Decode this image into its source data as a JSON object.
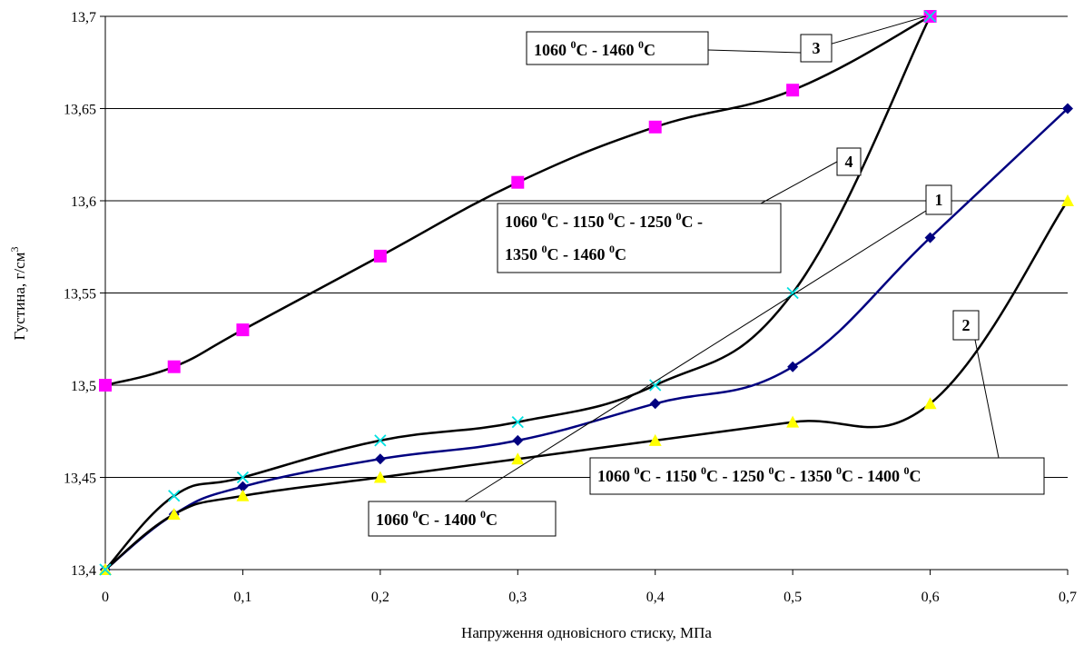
{
  "chart_data": {
    "type": "line",
    "xlabel": "Напруження одновісного стиску, МПа",
    "ylabel": "Густина, г/см",
    "ylabel_sup": "3",
    "xlim": [
      0,
      0.7
    ],
    "ylim": [
      13.4,
      13.7
    ],
    "x_ticks": [
      0,
      0.1,
      0.2,
      0.3,
      0.4,
      0.5,
      0.6,
      0.7
    ],
    "x_tick_labels": [
      "0",
      "0,1",
      "0,2",
      "0,3",
      "0,4",
      "0,5",
      "0,6",
      "0,7"
    ],
    "y_ticks": [
      13.4,
      13.45,
      13.5,
      13.55,
      13.6,
      13.65,
      13.7
    ],
    "y_tick_labels": [
      "13,4",
      "13,45",
      "13,5",
      "13,55",
      "13,6",
      "13,65",
      "13,7"
    ],
    "grid": "horizontal",
    "series": [
      {
        "id": "1",
        "marker": "diamond",
        "marker_color": "#000080",
        "line_color": "#000080",
        "x": [
          0,
          0.05,
          0.1,
          0.2,
          0.3,
          0.4,
          0.5,
          0.6,
          0.7
        ],
        "y": [
          13.4,
          13.43,
          13.445,
          13.46,
          13.47,
          13.49,
          13.51,
          13.58,
          13.65
        ]
      },
      {
        "id": "2",
        "marker": "triangle",
        "marker_color": "#ffff00",
        "line_color": "#000000",
        "x": [
          0,
          0.05,
          0.1,
          0.2,
          0.3,
          0.4,
          0.5,
          0.6,
          0.7
        ],
        "y": [
          13.4,
          13.43,
          13.44,
          13.45,
          13.46,
          13.47,
          13.48,
          13.49,
          13.6
        ]
      },
      {
        "id": "3",
        "marker": "square",
        "marker_color": "#ff00ff",
        "line_color": "#000000",
        "x": [
          0,
          0.05,
          0.1,
          0.2,
          0.3,
          0.4,
          0.5,
          0.6
        ],
        "y": [
          13.5,
          13.51,
          13.53,
          13.57,
          13.61,
          13.64,
          13.66,
          13.7
        ]
      },
      {
        "id": "4",
        "marker": "x",
        "marker_color": "#00e0e0",
        "line_color": "#000000",
        "x": [
          0,
          0.05,
          0.1,
          0.2,
          0.3,
          0.4,
          0.5,
          0.6
        ],
        "y": [
          13.4,
          13.44,
          13.45,
          13.47,
          13.48,
          13.5,
          13.55,
          13.7
        ]
      }
    ],
    "annotations": [
      {
        "series": "3",
        "number": "3",
        "lines": [
          [
            [
              "1060 ",
              ""
            ],
            [
              "0",
              "sup"
            ],
            [
              "C - 1460 ",
              ""
            ],
            [
              "0",
              "sup"
            ],
            [
              "C",
              ""
            ]
          ]
        ]
      },
      {
        "series": "4",
        "number": "4",
        "lines": [
          [
            [
              "1060 ",
              ""
            ],
            [
              "0",
              "sup"
            ],
            [
              "C - 1150 ",
              ""
            ],
            [
              "0",
              "sup"
            ],
            [
              "C - 1250 ",
              ""
            ],
            [
              "0",
              "sup"
            ],
            [
              "C -",
              ""
            ]
          ],
          [
            [
              "1350 ",
              ""
            ],
            [
              "0",
              "sup"
            ],
            [
              "C - 1460 ",
              ""
            ],
            [
              "0",
              "sup"
            ],
            [
              "C",
              ""
            ]
          ]
        ]
      },
      {
        "series": "1",
        "number": "1",
        "lines": [
          [
            [
              "1060 ",
              ""
            ],
            [
              "0",
              "sup"
            ],
            [
              "C - 1400 ",
              ""
            ],
            [
              "0",
              "sup"
            ],
            [
              "C",
              ""
            ]
          ]
        ]
      },
      {
        "series": "2",
        "number": "2",
        "lines": [
          [
            [
              "1060 ",
              ""
            ],
            [
              "0",
              "sup"
            ],
            [
              "C - 1150 ",
              ""
            ],
            [
              "0",
              "sup"
            ],
            [
              "C - 1250 ",
              ""
            ],
            [
              "0",
              "sup"
            ],
            [
              "C - 1350 ",
              ""
            ],
            [
              "0",
              "sup"
            ],
            [
              "C - 1400 ",
              ""
            ],
            [
              "0",
              "sup"
            ],
            [
              "C",
              ""
            ]
          ]
        ]
      }
    ]
  }
}
